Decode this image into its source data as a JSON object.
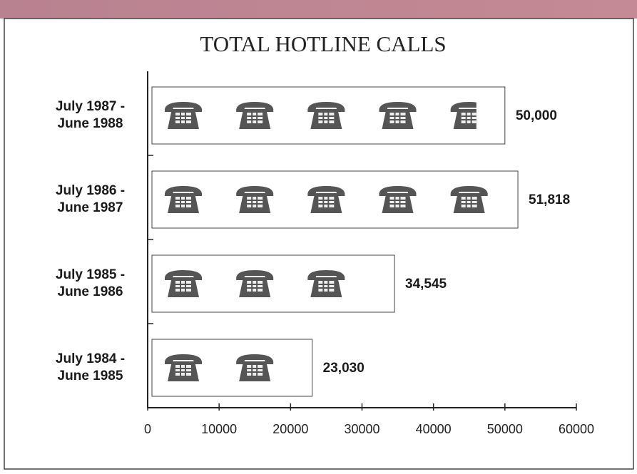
{
  "chart_data": {
    "type": "bar",
    "orientation": "horizontal",
    "title": "TOTAL HOTLINE CALLS",
    "categories": [
      "July 1987 - June 1988",
      "July 1986 - June 1987",
      "July 1985 - June 1986",
      "July 1984 - June 1985"
    ],
    "values": [
      50000,
      51818,
      34545,
      23030
    ],
    "value_labels": [
      "50,000",
      "51,818",
      "34,545",
      "23,030"
    ],
    "color": "#555555",
    "xlim": [
      0,
      60000
    ],
    "xticks": [
      0,
      10000,
      20000,
      30000,
      40000,
      50000,
      60000
    ]
  }
}
